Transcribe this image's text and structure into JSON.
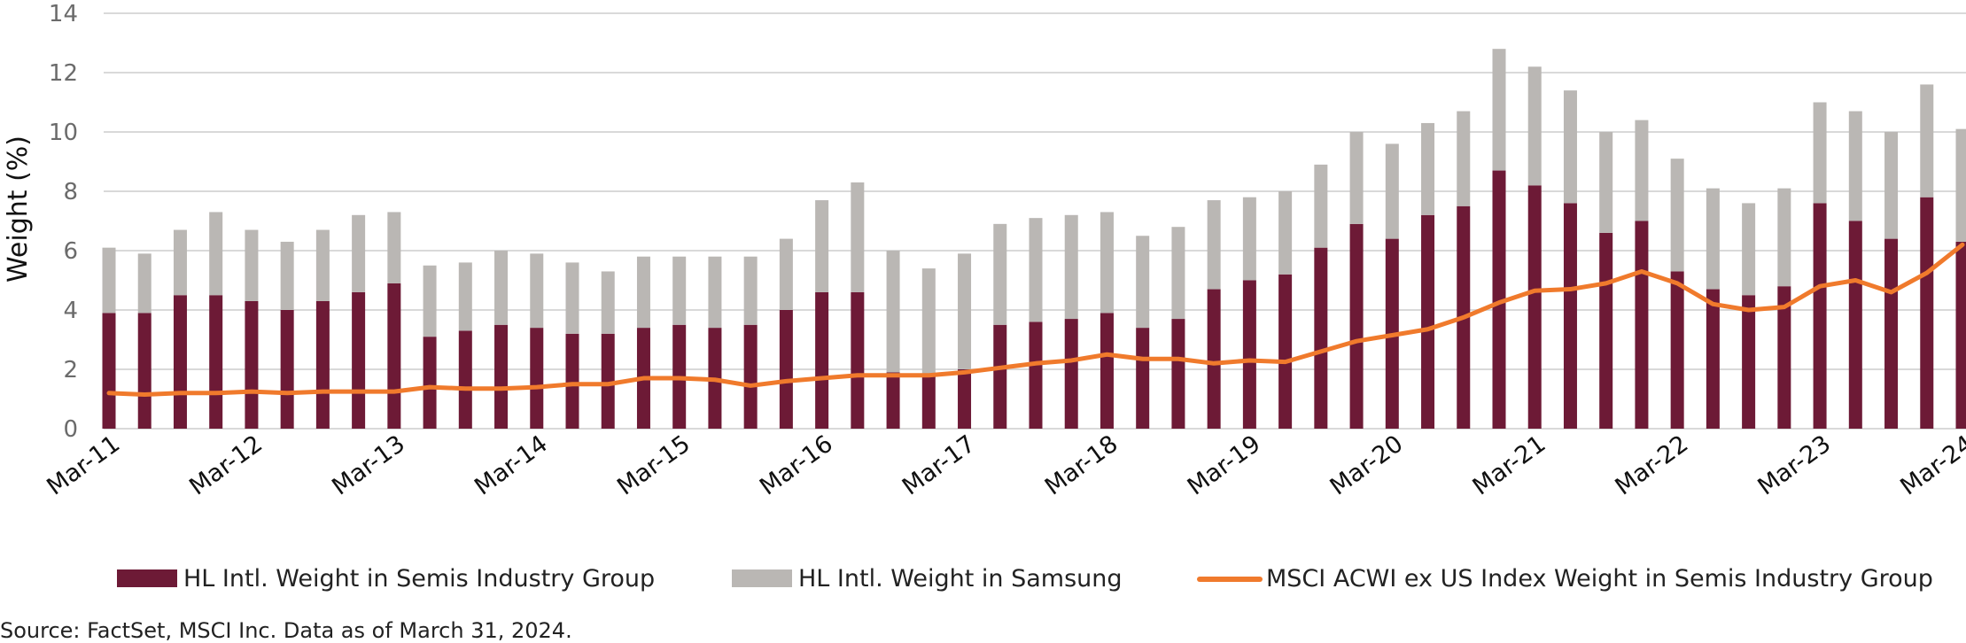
{
  "chart_data": {
    "type": "bar",
    "stacked": true,
    "ylabel": "Weight (%)",
    "xlabel": "",
    "ylim": [
      0,
      14
    ],
    "yticks": [
      0,
      2,
      4,
      6,
      8,
      10,
      12,
      14
    ],
    "grid": true,
    "legend": "bottom",
    "x_tick_labels": [
      "Mar-11",
      "Mar-12",
      "Mar-13",
      "Mar-14",
      "Mar-15",
      "Mar-16",
      "Mar-17",
      "Mar-18",
      "Mar-19",
      "Mar-20",
      "Mar-21",
      "Mar-22",
      "Mar-23",
      "Mar-24"
    ],
    "periods_per_tick": 4,
    "series": [
      {
        "name": "HL Intl. Weight in Semis Industry Group",
        "kind": "bar",
        "color": "#6d1a36",
        "values": [
          3.9,
          3.9,
          4.5,
          4.5,
          4.3,
          4.0,
          4.3,
          4.6,
          4.9,
          3.1,
          3.3,
          3.5,
          3.4,
          3.2,
          3.2,
          3.4,
          3.5,
          3.4,
          3.5,
          4.0,
          4.6,
          4.6,
          1.9,
          1.8,
          2.0,
          3.5,
          3.6,
          3.7,
          3.9,
          3.4,
          3.7,
          4.7,
          5.0,
          5.2,
          6.1,
          6.9,
          6.4,
          7.2,
          7.5,
          8.7,
          8.2,
          7.6,
          6.6,
          7.0,
          5.3,
          4.7,
          4.5,
          4.8,
          7.6,
          7.0,
          6.4,
          7.8,
          6.3
        ]
      },
      {
        "name": "HL Intl. Weight in Samsung",
        "kind": "bar",
        "color": "#bab7b4",
        "values": [
          2.2,
          2.0,
          2.2,
          2.8,
          2.4,
          2.3,
          2.4,
          2.6,
          2.4,
          2.4,
          2.3,
          2.5,
          2.5,
          2.4,
          2.1,
          2.4,
          2.3,
          2.4,
          2.3,
          2.4,
          3.1,
          3.7,
          4.1,
          3.6,
          3.9,
          3.4,
          3.5,
          3.5,
          3.4,
          3.1,
          3.1,
          3.0,
          2.8,
          2.8,
          2.8,
          3.1,
          3.2,
          3.1,
          3.2,
          4.1,
          4.0,
          3.8,
          3.4,
          3.4,
          3.8,
          3.4,
          3.1,
          3.3,
          3.4,
          3.7,
          3.6,
          3.8,
          3.8
        ]
      },
      {
        "name": "MSCI ACWI ex US Index Weight in Semis Industry Group",
        "kind": "line",
        "color": "#f07a2c",
        "values": [
          1.2,
          1.15,
          1.2,
          1.2,
          1.25,
          1.2,
          1.25,
          1.25,
          1.25,
          1.4,
          1.35,
          1.35,
          1.4,
          1.5,
          1.5,
          1.7,
          1.7,
          1.65,
          1.45,
          1.6,
          1.7,
          1.8,
          1.8,
          1.8,
          1.9,
          2.05,
          2.2,
          2.3,
          2.5,
          2.35,
          2.35,
          2.2,
          2.3,
          2.25,
          2.6,
          2.95,
          3.15,
          3.35,
          3.75,
          4.25,
          4.65,
          4.7,
          4.9,
          5.3,
          4.9,
          4.2,
          4.0,
          4.1,
          4.8,
          5.0,
          4.6,
          5.25,
          6.2
        ]
      }
    ]
  },
  "source_note": "Source: FactSet, MSCI Inc. Data as of March 31, 2024."
}
